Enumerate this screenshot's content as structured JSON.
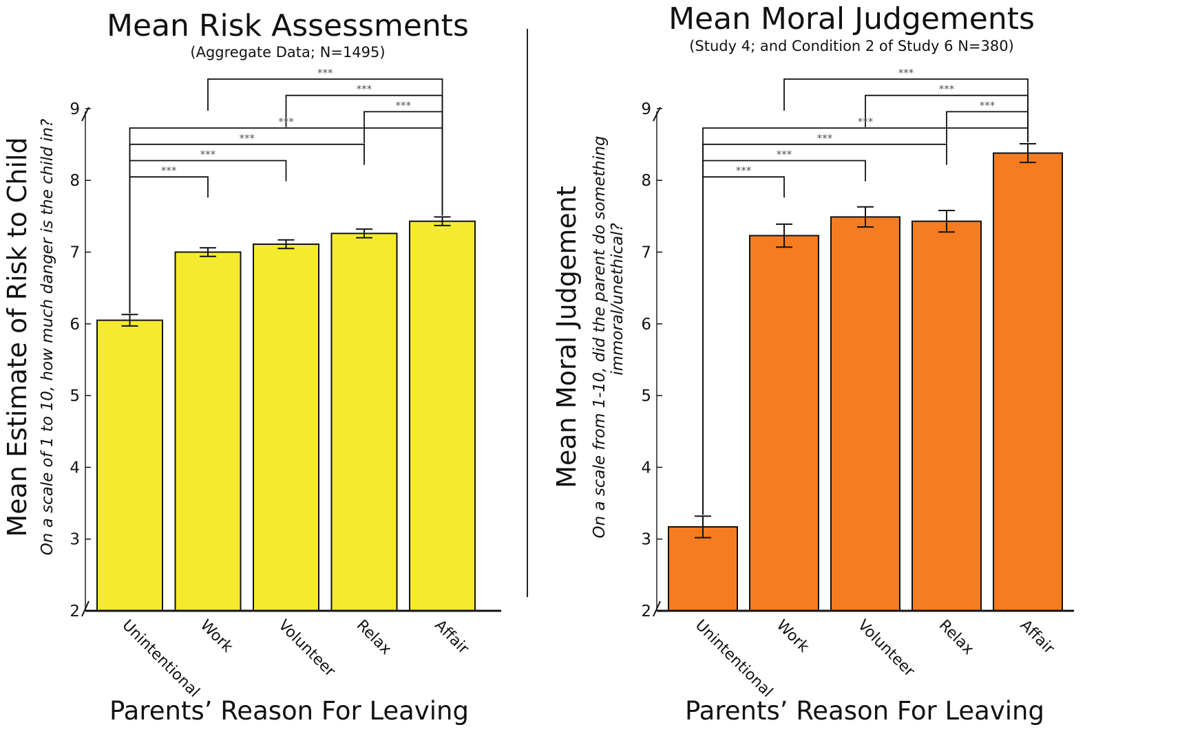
{
  "xlabel": "Parents’ Reason For Leaving",
  "sig_marker": "***",
  "chart_data": [
    {
      "type": "bar",
      "title": "Mean Risk Assessments",
      "subtitle": "(Aggregate Data; N=1495)",
      "ylabel": "Mean Estimate of Risk to Child",
      "ylabel_sub": "On a scale of 1 to 10, how much danger  is the child in?",
      "xlabel": "Parents’ Reason For Leaving",
      "categories": [
        "Unintentional",
        "Work",
        "Volunteer",
        "Relax",
        "Affair"
      ],
      "values": [
        6.05,
        7.0,
        7.11,
        7.26,
        7.43
      ],
      "errors": [
        0.08,
        0.06,
        0.06,
        0.06,
        0.06
      ],
      "ylim": [
        2,
        9
      ],
      "yticks": [
        2,
        3,
        4,
        5,
        6,
        7,
        8,
        9
      ],
      "bar_color": "#f5eb2e",
      "significance": [
        {
          "from": "Work",
          "to": "Affair",
          "label": "***"
        },
        {
          "from": "Volunteer",
          "to": "Affair",
          "label": "***"
        },
        {
          "from": "Relax",
          "to": "Affair",
          "label": "***"
        },
        {
          "from": "Unintentional",
          "to": "Affair",
          "label": "***"
        },
        {
          "from": "Unintentional",
          "to": "Relax",
          "label": "***"
        },
        {
          "from": "Unintentional",
          "to": "Volunteer",
          "label": "***"
        },
        {
          "from": "Unintentional",
          "to": "Work",
          "label": "***"
        }
      ]
    },
    {
      "type": "bar",
      "title": "Mean Moral Judgements",
      "subtitle": "(Study 4; and Condition 2 of Study 6  N=380)",
      "ylabel": "Mean Moral Judgement",
      "ylabel_sub_lines": [
        "On a scale from 1-10, did the parent do something",
        "immoral/unethical?"
      ],
      "xlabel": "Parents’ Reason For Leaving",
      "categories": [
        "Unintentional",
        "Work",
        "Volunteer",
        "Relax",
        "Affair"
      ],
      "values": [
        3.17,
        7.23,
        7.49,
        7.43,
        8.38
      ],
      "errors": [
        0.15,
        0.16,
        0.14,
        0.15,
        0.13
      ],
      "ylim": [
        2,
        9
      ],
      "yticks": [
        2,
        3,
        4,
        5,
        6,
        7,
        8,
        9
      ],
      "bar_color": "#f57c20",
      "significance": [
        {
          "from": "Work",
          "to": "Affair",
          "label": "***"
        },
        {
          "from": "Volunteer",
          "to": "Affair",
          "label": "***"
        },
        {
          "from": "Relax",
          "to": "Affair",
          "label": "***"
        },
        {
          "from": "Unintentional",
          "to": "Affair",
          "label": "***"
        },
        {
          "from": "Unintentional",
          "to": "Relax",
          "label": "***"
        },
        {
          "from": "Unintentional",
          "to": "Volunteer",
          "label": "***"
        },
        {
          "from": "Unintentional",
          "to": "Work",
          "label": "***"
        }
      ]
    }
  ]
}
